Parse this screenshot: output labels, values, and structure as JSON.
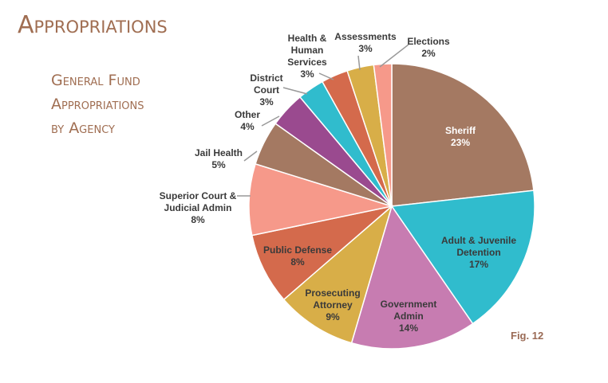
{
  "header": {
    "title": "Appropriations",
    "subtitle_lines": [
      "General Fund",
      "Appropriations",
      "by Agency"
    ],
    "figure_label": "Fig. 12"
  },
  "chart_data": {
    "type": "pie",
    "start": "12 o'clock, clockwise",
    "slices": [
      {
        "label": "Sheriff",
        "value": 23,
        "color": "#A47962",
        "label_color": "#ffffff",
        "label_inside": true
      },
      {
        "label": "Adult & Juvenile Detention",
        "value": 17,
        "color": "#30BCCD",
        "label_color": "#3a3a3a",
        "label_inside": true
      },
      {
        "label": "Government Admin",
        "value": 14,
        "color": "#C77CB1",
        "label_color": "#3a3a3a",
        "label_inside": true
      },
      {
        "label": "Prosecuting Attorney",
        "value": 9,
        "color": "#D8AE48",
        "label_color": "#3a3a3a",
        "label_inside": true
      },
      {
        "label": "Public Defense",
        "value": 8,
        "color": "#D46A4C",
        "label_color": "#3a3a3a",
        "label_inside": true
      },
      {
        "label": "Superior Court & Judicial Admin",
        "value": 8,
        "color": "#F6998A",
        "label_color": "#3a3a3a",
        "label_inside": false
      },
      {
        "label": "Jail Health",
        "value": 5,
        "color": "#A47962",
        "label_color": "#3a3a3a",
        "label_inside": false
      },
      {
        "label": "Other",
        "value": 4,
        "color": "#9A4A8F",
        "label_color": "#3a3a3a",
        "label_inside": false
      },
      {
        "label": "District Court",
        "value": 3,
        "color": "#30BCCD",
        "label_color": "#3a3a3a",
        "label_inside": false
      },
      {
        "label": "Health & Human Services",
        "value": 3,
        "color": "#D46A4C",
        "label_color": "#3a3a3a",
        "label_inside": false
      },
      {
        "label": "Assessments",
        "value": 3,
        "color": "#D8AE48",
        "label_color": "#3a3a3a",
        "label_inside": false
      },
      {
        "label": "Elections",
        "value": 2,
        "color": "#F6998A",
        "label_color": "#3a3a3a",
        "label_inside": false
      }
    ],
    "label_lines": [
      [
        "Sheriff",
        "23%"
      ],
      [
        "Adult & Juvenile",
        "Detention",
        "17%"
      ],
      [
        "Government",
        "Admin",
        "14%"
      ],
      [
        "Prosecuting",
        "Attorney",
        "9%"
      ],
      [
        "Public Defense",
        "8%"
      ],
      [
        "Superior Court &",
        "Judicial Admin",
        "8%"
      ],
      [
        "Jail Health",
        "5%"
      ],
      [
        "Other",
        "4%"
      ],
      [
        "District",
        "Court",
        "3%"
      ],
      [
        "Health &",
        "Human",
        "Services",
        "3%"
      ],
      [
        "Assessments",
        "3%"
      ],
      [
        "Elections",
        "2%"
      ]
    ]
  }
}
